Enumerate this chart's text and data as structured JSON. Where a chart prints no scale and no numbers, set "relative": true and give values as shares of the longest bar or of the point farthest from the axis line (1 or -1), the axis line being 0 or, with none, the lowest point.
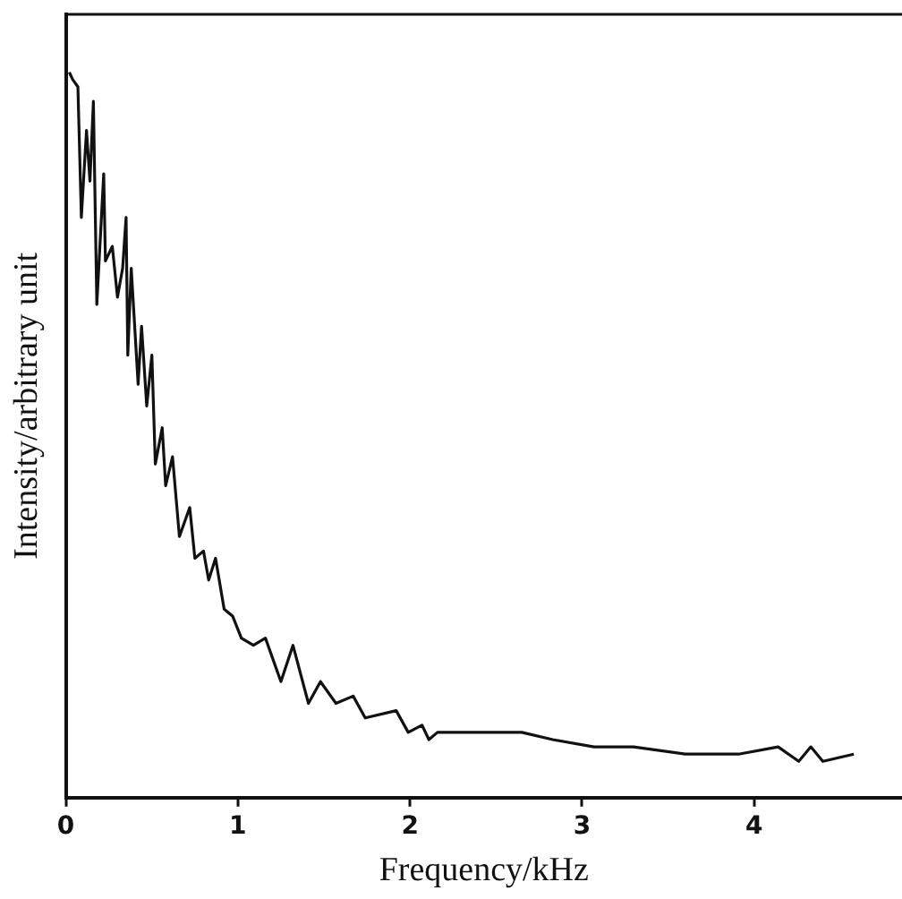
{
  "chart_data": {
    "type": "line",
    "xlabel": "Frequency/kHz",
    "ylabel": "Intensity/arbitrary unit",
    "relative": true,
    "xlim": [
      0,
      4.86
    ],
    "xticks": [
      0,
      1,
      2,
      3,
      4
    ],
    "grid": false,
    "legend": false,
    "marker": "none",
    "line_style": "solid",
    "series": [
      {
        "color": "#111111",
        "x": [
          0.02,
          0.04,
          0.07,
          0.09,
          0.12,
          0.14,
          0.16,
          0.18,
          0.22,
          0.23,
          0.27,
          0.3,
          0.33,
          0.35,
          0.36,
          0.38,
          0.42,
          0.44,
          0.47,
          0.5,
          0.52,
          0.56,
          0.58,
          0.62,
          0.66,
          0.72,
          0.75,
          0.8,
          0.83,
          0.87,
          0.92,
          0.97,
          1.02,
          1.09,
          1.16,
          1.25,
          1.32,
          1.41,
          1.48,
          1.57,
          1.67,
          1.74,
          1.92,
          1.99,
          2.07,
          2.11,
          2.16,
          2.37,
          2.65,
          2.83,
          3.07,
          3.3,
          3.6,
          3.91,
          4.14,
          4.26,
          4.33,
          4.4,
          4.58
        ],
        "values": [
          1.0,
          0.99,
          0.98,
          0.8,
          0.92,
          0.85,
          0.96,
          0.68,
          0.86,
          0.74,
          0.76,
          0.69,
          0.73,
          0.8,
          0.61,
          0.73,
          0.57,
          0.65,
          0.54,
          0.61,
          0.46,
          0.51,
          0.43,
          0.47,
          0.36,
          0.4,
          0.33,
          0.34,
          0.3,
          0.33,
          0.26,
          0.25,
          0.22,
          0.21,
          0.22,
          0.16,
          0.21,
          0.13,
          0.16,
          0.13,
          0.14,
          0.11,
          0.12,
          0.09,
          0.1,
          0.08,
          0.09,
          0.09,
          0.09,
          0.08,
          0.07,
          0.07,
          0.06,
          0.06,
          0.07,
          0.05,
          0.07,
          0.05,
          0.06
        ]
      }
    ]
  }
}
